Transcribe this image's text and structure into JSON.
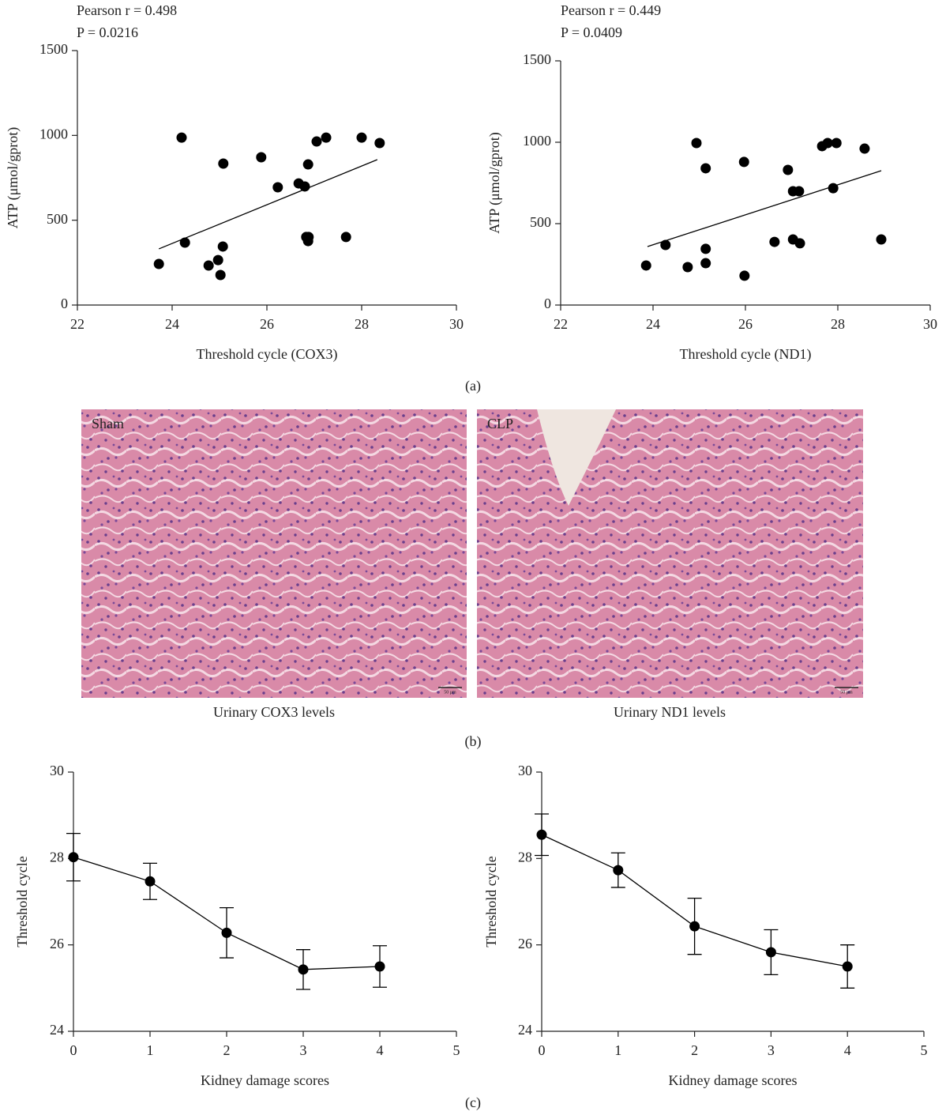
{
  "chart_data": [
    {
      "type": "scatter",
      "annotations": [
        "Pearson r = 0.498",
        "P = 0.0216"
      ],
      "xlabel": "Threshold cycle (COX3)",
      "ylabel": "ATP (μmol/gprot)",
      "x": [
        23.72,
        24.27,
        24.2,
        24.77,
        24.97,
        25.02,
        25.08,
        25.07,
        25.88,
        26.23,
        26.67,
        26.8,
        26.87,
        26.83,
        26.88,
        26.87,
        27.05,
        27.25,
        27.67,
        28.0,
        28.38
      ],
      "values": [
        242,
        368,
        987,
        233,
        265,
        177,
        834,
        345,
        871,
        694,
        717,
        699,
        829,
        401,
        401,
        377,
        964,
        987,
        401,
        987,
        955
      ],
      "fit_line": {
        "x": [
          23.72,
          28.33
        ],
        "y": [
          331,
          857
        ]
      },
      "color": "#000000",
      "xlim": [
        22,
        30
      ],
      "xticks": [
        22,
        24,
        26,
        28,
        30
      ],
      "ylim": [
        0,
        1500
      ],
      "yticks": [
        0,
        500,
        1000,
        1500
      ]
    },
    {
      "type": "scatter",
      "annotations": [
        "Pearson r = 0.449",
        "P = 0.0409"
      ],
      "xlabel": "Threshold cycle (ND1)",
      "ylabel": "ATP (μmol/gprot)",
      "x": [
        23.85,
        24.27,
        24.94,
        24.75,
        25.14,
        25.14,
        25.14,
        25.98,
        25.97,
        26.63,
        26.92,
        27.03,
        27.16,
        27.03,
        27.18,
        27.66,
        27.78,
        27.97,
        27.9,
        28.58,
        28.94
      ],
      "values": [
        243,
        369,
        995,
        233,
        257,
        345,
        840,
        180,
        879,
        388,
        830,
        699,
        699,
        403,
        379,
        976,
        995,
        995,
        718,
        961,
        403
      ],
      "fit_line": {
        "x": [
          23.88,
          28.94
        ],
        "y": [
          359,
          825
        ]
      },
      "color": "#000000",
      "xlim": [
        22,
        30
      ],
      "xticks": [
        22,
        24,
        26,
        28,
        30
      ],
      "ylim": [
        0,
        1500
      ],
      "yticks": [
        0,
        500,
        1000,
        1500
      ]
    },
    {
      "type": "line",
      "xlabel": "Kidney damage scores",
      "ylabel": "Threshold cycle",
      "x": [
        0,
        1,
        2,
        3,
        4
      ],
      "values": [
        28.03,
        27.47,
        26.28,
        25.43,
        25.5
      ],
      "errors": [
        0.55,
        0.42,
        0.58,
        0.46,
        0.48
      ],
      "color": "#000000",
      "xlim": [
        0,
        5
      ],
      "xticks": [
        0,
        1,
        2,
        3,
        4,
        5
      ],
      "ylim": [
        24,
        30
      ],
      "yticks": [
        24,
        26,
        28,
        30
      ]
    },
    {
      "type": "line",
      "xlabel": "Kidney damage scores",
      "ylabel": "Threshold cycle",
      "x": [
        0,
        1,
        2,
        3,
        4
      ],
      "values": [
        28.55,
        27.73,
        26.43,
        25.83,
        25.5
      ],
      "errors": [
        0.48,
        0.4,
        0.65,
        0.52,
        0.5
      ],
      "color": "#000000",
      "xlim": [
        0,
        5
      ],
      "xticks": [
        0,
        1,
        2,
        3,
        4,
        5
      ],
      "ylim": [
        24,
        30
      ],
      "yticks": [
        24,
        26,
        28,
        30
      ]
    }
  ],
  "panel_labels": [
    "(a)",
    "(b)",
    "(c)"
  ],
  "images": [
    {
      "label": "Sham",
      "caption": "Urinary COX3 levels",
      "scale_bar": "50 μm"
    },
    {
      "label": "CLP",
      "caption": "Urinary ND1 levels",
      "scale_bar": "50 μm"
    }
  ]
}
